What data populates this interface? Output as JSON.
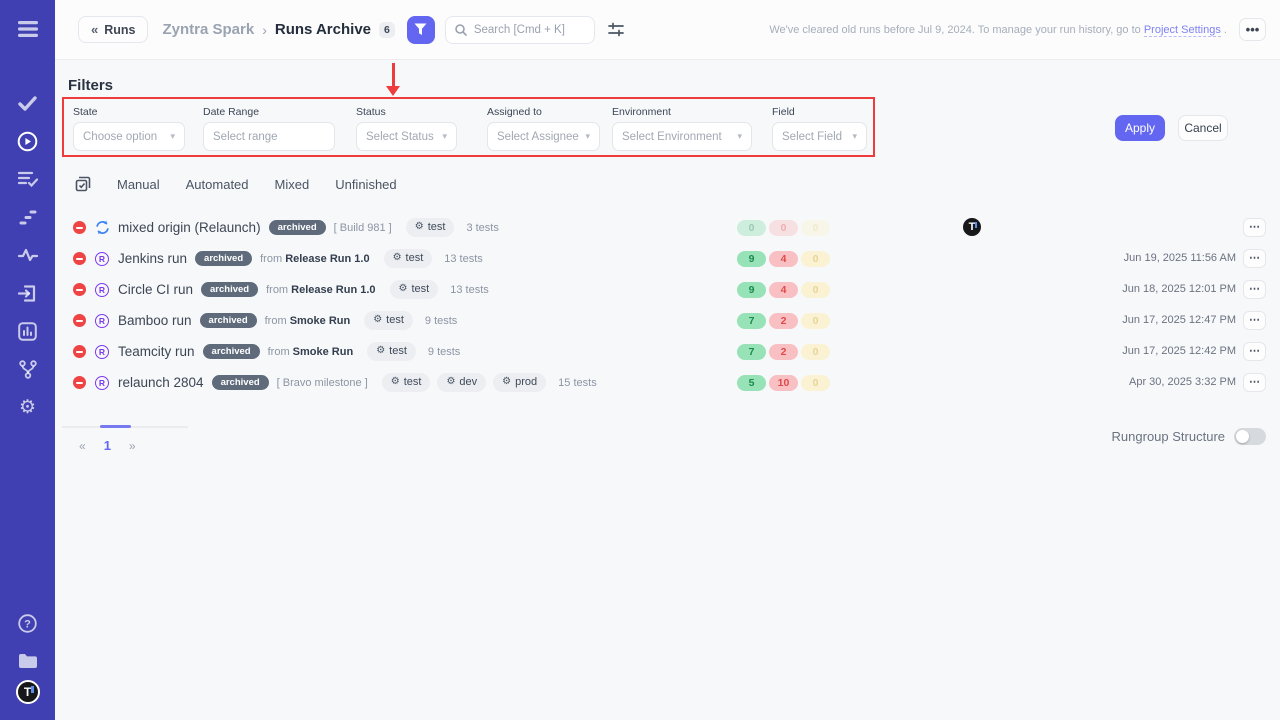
{
  "colors": {
    "sidebar_bg": "#4040b2",
    "accent": "#6366f1",
    "highlight_red": "#ee3b3b",
    "count_green_bg": "#97e2b7",
    "count_red_bg": "#f9c0c3",
    "count_yellow_bg": "#faf2d2",
    "archived_pill_bg": "#5f6b7b"
  },
  "sidebar": {
    "icons": [
      "menu-icon",
      "check-icon",
      "play-circle-icon",
      "list-check-icon",
      "steps-icon",
      "pulse-icon",
      "import-icon",
      "bar-chart-icon",
      "branch-icon",
      "gear-icon",
      "help-icon",
      "folder-icon",
      "user-avatar"
    ],
    "avatar_letter": "T"
  },
  "header": {
    "back_chevron": "«",
    "back_label": "Runs",
    "breadcrumb": {
      "project": "Zyntra Spark",
      "separator": "›",
      "page": "Runs Archive",
      "count": "6"
    },
    "search_placeholder": "Search [Cmd + K]",
    "notice": {
      "text_before": "We've cleared old runs before Jul 9, 2024. To manage your run history, go to ",
      "link": "Project Settings",
      "text_after": " ."
    },
    "more_label": "•••"
  },
  "filters": {
    "title": "Filters",
    "fields": [
      {
        "label": "State",
        "placeholder": "Choose option",
        "has_caret": true
      },
      {
        "label": "Date Range",
        "placeholder": "Select range",
        "has_caret": false
      },
      {
        "label": "Status",
        "placeholder": "Select Status",
        "has_caret": true
      },
      {
        "label": "Assigned to",
        "placeholder": "Select Assignee",
        "has_caret": true
      },
      {
        "label": "Environment",
        "placeholder": "Select Environment",
        "has_caret": true
      },
      {
        "label": "Field",
        "placeholder": "Select Field",
        "has_caret": true
      }
    ],
    "apply_label": "Apply",
    "cancel_label": "Cancel"
  },
  "tabs": {
    "0": "Manual",
    "1": "Automated",
    "2": "Mixed",
    "3": "Unfinished"
  },
  "list": {
    "more_label": "⋯",
    "caret": "▾",
    "tag_gear": "⚙"
  },
  "runs": [
    {
      "name": "mixed origin (Relaunch)",
      "type": "mixed",
      "badge": "archived",
      "extra": "[ Build 981 ]",
      "from_label": "",
      "from": "",
      "tags": [
        "test"
      ],
      "tests": "3 tests",
      "counts": {
        "passed": "0",
        "failed": "0",
        "other": "0"
      },
      "faded": true,
      "avatar": "T",
      "date": ""
    },
    {
      "name": "Jenkins run",
      "type": "automated",
      "badge": "archived",
      "extra": "",
      "from_label": "from",
      "from": "Release Run 1.0",
      "tags": [
        "test"
      ],
      "tests": "13 tests",
      "counts": {
        "passed": "9",
        "failed": "4",
        "other": "0"
      },
      "faded": false,
      "avatar": "",
      "date": "Jun 19, 2025 11:56 AM"
    },
    {
      "name": "Circle CI run",
      "type": "automated",
      "badge": "archived",
      "extra": "",
      "from_label": "from",
      "from": "Release Run 1.0",
      "tags": [
        "test"
      ],
      "tests": "13 tests",
      "counts": {
        "passed": "9",
        "failed": "4",
        "other": "0"
      },
      "faded": false,
      "avatar": "",
      "date": "Jun 18, 2025 12:01 PM"
    },
    {
      "name": "Bamboo run",
      "type": "automated",
      "badge": "archived",
      "extra": "",
      "from_label": "from",
      "from": "Smoke Run",
      "tags": [
        "test"
      ],
      "tests": "9 tests",
      "counts": {
        "passed": "7",
        "failed": "2",
        "other": "0"
      },
      "faded": false,
      "avatar": "",
      "date": "Jun 17, 2025 12:47 PM"
    },
    {
      "name": "Teamcity run",
      "type": "automated",
      "badge": "archived",
      "extra": "",
      "from_label": "from",
      "from": "Smoke Run",
      "tags": [
        "test"
      ],
      "tests": "9 tests",
      "counts": {
        "passed": "7",
        "failed": "2",
        "other": "0"
      },
      "faded": false,
      "avatar": "",
      "date": "Jun 17, 2025 12:42 PM"
    },
    {
      "name": "relaunch 2804",
      "type": "automated",
      "badge": "archived",
      "extra": "[ Bravo milestone ]",
      "from_label": "",
      "from": "",
      "tags": [
        "test",
        "dev",
        "prod"
      ],
      "tests": "15 tests",
      "counts": {
        "passed": "5",
        "failed": "10",
        "other": "0"
      },
      "faded": false,
      "avatar": "",
      "date": "Apr 30, 2025 3:32 PM"
    }
  ],
  "pagination": {
    "prev": "«",
    "page": "1",
    "next": "»"
  },
  "footer": {
    "toggle_label": "Rungroup Structure"
  }
}
